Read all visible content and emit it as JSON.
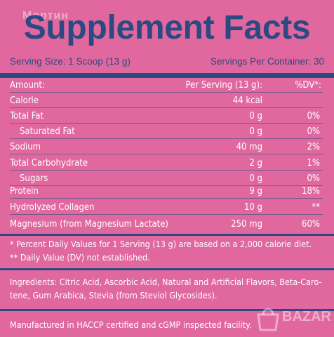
{
  "watermark_top": "Мортин",
  "title": "Supplement Facts",
  "serving_size": "Serving Size: 1 Scoop (13 g)",
  "servings_per_container": "Servings Per Container: 30",
  "header": {
    "name": "Amount:",
    "amount": "Per Serving (13 g):",
    "dv": "%DV*:"
  },
  "rows": [
    {
      "name": "Calorie",
      "amount": "44 kcal",
      "dv": ""
    },
    {
      "name": "Total Fat",
      "amount": "0 g",
      "dv": "0%"
    },
    {
      "name": "Saturated Fat",
      "amount": "0 g",
      "dv": "0%"
    },
    {
      "name": "Sodium",
      "amount": "40 mg",
      "dv": "2%"
    },
    {
      "name": "Total Carbohydrate",
      "amount": "2 g",
      "dv": "1%"
    },
    {
      "name": "Sugars",
      "amount": "0 g",
      "dv": "0%"
    },
    {
      "name": "Protein",
      "amount": "9 g",
      "dv": "18%"
    },
    {
      "name": "Hydrolyzed Collagen",
      "amount": "10 g",
      "dv": "**"
    },
    {
      "name": "Magnesium (from Magnesium Lactate)",
      "amount": "250 mg",
      "dv": "60%"
    }
  ],
  "footnote_1": "* Percent Daily Values for 1 Serving (13 g) are based on a 2,000 calorie diet.",
  "footnote_2": "** Daily Value (DV) not established.",
  "ingredients_1": "Ingredients: Citric Acid, Ascorbic Acid, Natural and Artificial Flavors, Beta-Caro-",
  "ingredients_2": "tene, Gum Arabica, Stevia (from Steviol Glycosides).",
  "manufactured": "Manufactured in HACCP certified and cGMP inspected facility.",
  "watermark_bottom": "BAZAR"
}
